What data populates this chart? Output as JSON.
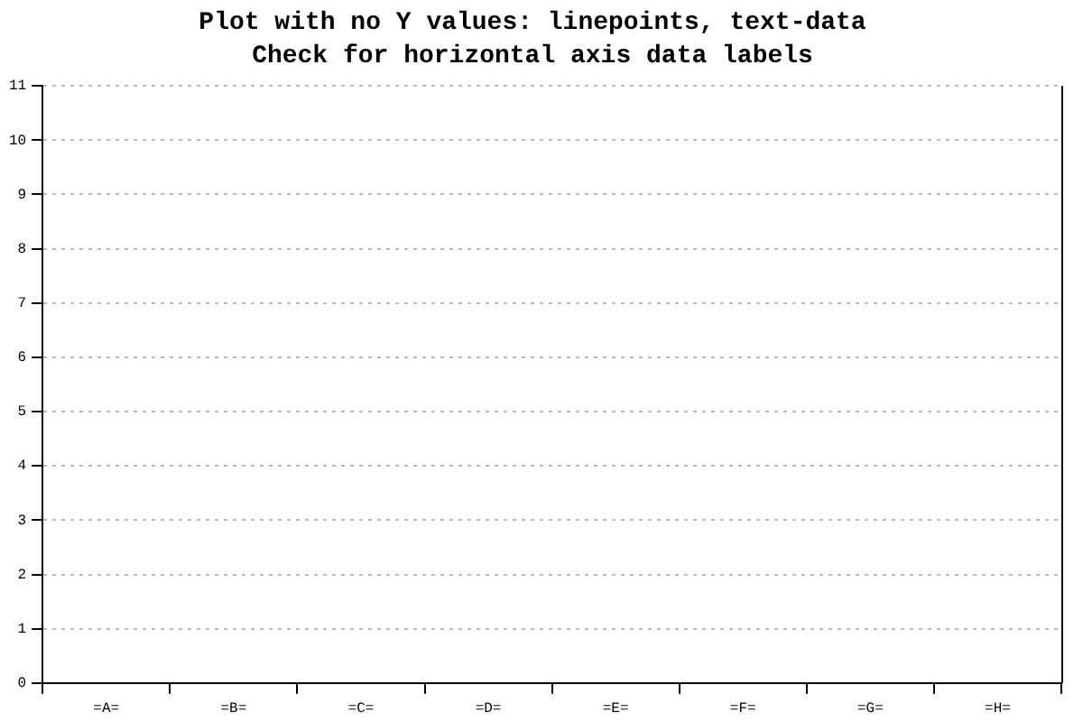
{
  "chart_data": {
    "type": "line",
    "title": "Plot with no Y values: linepoints, text-data",
    "subtitle": "Check for horizontal axis data labels",
    "categories": [
      "=A=",
      "=B=",
      "=C=",
      "=D=",
      "=E=",
      "=F=",
      "=G=",
      "=H="
    ],
    "series": [
      {
        "values": [
          null,
          null,
          null,
          null,
          null,
          null,
          null,
          null
        ]
      }
    ],
    "ylim": [
      0,
      11
    ],
    "yticks": [
      0,
      1,
      2,
      3,
      4,
      5,
      6,
      7,
      8,
      9,
      10,
      11
    ],
    "grid": "y",
    "legend": false
  }
}
